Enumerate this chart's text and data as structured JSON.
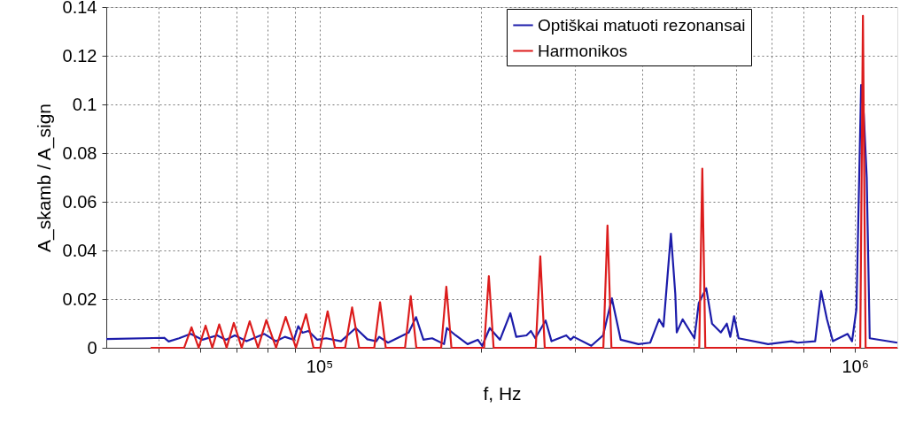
{
  "chart_data": {
    "type": "line",
    "xlabel": "f, Hz",
    "ylabel": "A_skamb / A_sign",
    "log": "x",
    "grid": true,
    "legend": "top right",
    "line_style": "solid",
    "xlim": [
      40000,
      1200000
    ],
    "ylim": [
      0,
      0.14
    ],
    "xticks": [
      {
        "value": 50000,
        "label": null
      },
      {
        "value": 60000,
        "label": null
      },
      {
        "value": 70000,
        "label": null
      },
      {
        "value": 80000,
        "label": null
      },
      {
        "value": 90000,
        "label": null
      },
      {
        "value": 100000,
        "label": "10⁵"
      },
      {
        "value": 200000,
        "label": null
      },
      {
        "value": 300000,
        "label": null
      },
      {
        "value": 400000,
        "label": null
      },
      {
        "value": 500000,
        "label": null
      },
      {
        "value": 600000,
        "label": null
      },
      {
        "value": 700000,
        "label": null
      },
      {
        "value": 800000,
        "label": null
      },
      {
        "value": 900000,
        "label": null
      },
      {
        "value": 1000000,
        "label": "10⁶"
      }
    ],
    "yticks": [
      0,
      0.02,
      0.04,
      0.06,
      0.08,
      0.1,
      0.12,
      0.14
    ],
    "series": [
      {
        "name": "Optiškai matuoti rezonansai",
        "color": "#1c1caa",
        "x": [
          40000,
          51300,
          52300,
          54700,
          57500,
          60500,
          64400,
          66900,
          69500,
          73100,
          78900,
          83000,
          86200,
          89600,
          91300,
          93000,
          95400,
          99100,
          103000,
          109700,
          116900,
          122900,
          127700,
          129300,
          134300,
          146800,
          151500,
          156400,
          162400,
          170900,
          173000,
          179700,
          189100,
          197600,
          201400,
          208000,
          217400,
          227300,
          233100,
          243600,
          248300,
          253000,
          264500,
          271300,
          289000,
          294500,
          298400,
          321900,
          338600,
          351700,
          365300,
          394200,
          414700,
          430800,
          439000,
          453300,
          461900,
          464800,
          476700,
          501400,
          511000,
          527600,
          541000,
          561900,
          576400,
          585200,
          594800,
          606300,
          688400,
          761500,
          781000,
          842800,
          864600,
          886700,
          909400,
          969000,
          987600,
          1006500,
          1027000,
          1038700,
          1052000,
          1065600,
          1200000
        ],
        "values": [
          0.0036,
          0.0041,
          0.0026,
          0.0039,
          0.0057,
          0.0033,
          0.0051,
          0.0033,
          0.0051,
          0.0027,
          0.0057,
          0.0027,
          0.0045,
          0.0033,
          0.0089,
          0.0062,
          0.0069,
          0.0033,
          0.0039,
          0.0027,
          0.0081,
          0.0035,
          0.0027,
          0.0045,
          0.0021,
          0.0063,
          0.0126,
          0.0033,
          0.0039,
          0.0015,
          0.0081,
          0.0051,
          0.0015,
          0.0033,
          0.0008,
          0.0081,
          0.0033,
          0.0142,
          0.0045,
          0.0051,
          0.0069,
          0.0039,
          0.0112,
          0.0027,
          0.0051,
          0.0033,
          0.0045,
          0.0008,
          0.0051,
          0.0203,
          0.0033,
          0.0015,
          0.0021,
          0.0117,
          0.0087,
          0.0469,
          0.0221,
          0.0063,
          0.0117,
          0.0039,
          0.0184,
          0.0245,
          0.0099,
          0.0063,
          0.0099,
          0.0045,
          0.013,
          0.0039,
          0.0015,
          0.0027,
          0.0021,
          0.0027,
          0.0233,
          0.0117,
          0.0027,
          0.0057,
          0.0027,
          0.016,
          0.108,
          0.096,
          0.07,
          0.0039,
          0.0021
        ]
      },
      {
        "name": "Harmonikos",
        "color": "#dc1c1c",
        "x": [
          48400,
          55900,
          57700,
          59500,
          61300,
          63100,
          65000,
          67100,
          69200,
          71600,
          74100,
          76800,
          79600,
          83000,
          86500,
          90400,
          94400,
          97500,
          100400,
          103600,
          106900,
          111700,
          115100,
          118600,
          126600,
          129800,
          133000,
          144500,
          148100,
          151700,
          168800,
          172600,
          176400,
          203000,
          207200,
          211500,
          253500,
          258500,
          263500,
          339000,
          345100,
          351000,
          512000,
          518800,
          525500,
          1023000,
          1035000,
          1047000,
          1200000
        ],
        "values": [
          0,
          0,
          0.0084,
          0,
          0.0091,
          0,
          0.0096,
          0,
          0.0102,
          0,
          0.0109,
          0,
          0.0114,
          0,
          0.0127,
          0,
          0.0138,
          0,
          0,
          0.015,
          0,
          0,
          0.0166,
          0,
          0,
          0.0187,
          0,
          0,
          0.0212,
          0,
          0,
          0.0251,
          0,
          0,
          0.0294,
          0,
          0,
          0.0376,
          0,
          0,
          0.0502,
          0,
          0,
          0.0736,
          0,
          0,
          0.1364,
          0,
          0
        ]
      }
    ]
  }
}
